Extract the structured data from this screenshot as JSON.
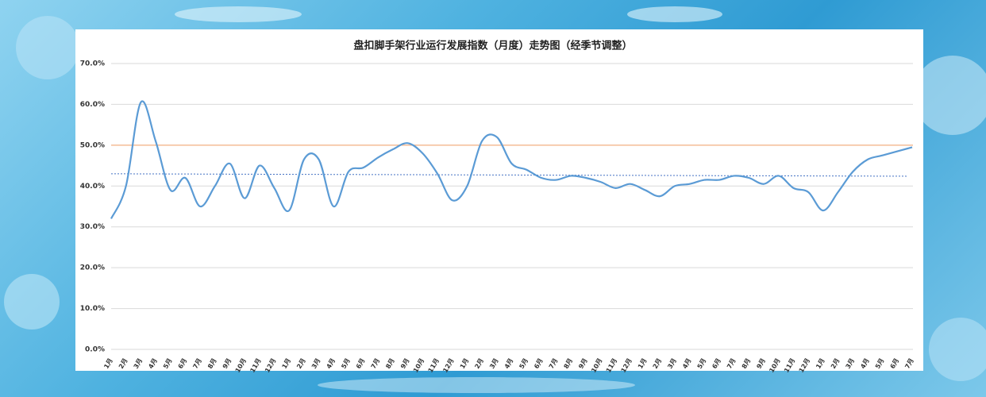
{
  "chart_data": {
    "type": "line",
    "title": "盘扣脚手架行业运行发展指数（月度）走势图（经季节调整）",
    "categories": [
      "1月",
      "2月",
      "3月",
      "4月",
      "5月",
      "6月",
      "7月",
      "8月",
      "9月",
      "10月",
      "11月",
      "12月",
      "1月",
      "2月",
      "3月",
      "4月",
      "5月",
      "6月",
      "7月",
      "8月",
      "9月",
      "10月",
      "11月",
      "12月",
      "1月",
      "2月",
      "3月",
      "4月",
      "5月",
      "6月",
      "7月",
      "8月",
      "9月",
      "10月",
      "11月",
      "12月",
      "1月",
      "2月",
      "3月",
      "4月",
      "5月",
      "6月",
      "7月",
      "8月",
      "9月",
      "10月",
      "11月",
      "12月",
      "1月",
      "2月",
      "3月",
      "4月",
      "5月",
      "6月",
      "7月"
    ],
    "series": [
      {
        "color": "#5b9bd5",
        "values": [
          32,
          40,
          60.5,
          51,
          39,
          42,
          35,
          40,
          45.5,
          37,
          45,
          39.5,
          34,
          46.5,
          46.5,
          35,
          43.5,
          44.5,
          47,
          49,
          50.5,
          48,
          43,
          36.5,
          40,
          51,
          52,
          45.5,
          44,
          42,
          41.5,
          42.5,
          42,
          41,
          39.5,
          40.5,
          39,
          37.5,
          40,
          40.5,
          41.5,
          41.5,
          42.5,
          42,
          40.5,
          42.5,
          39.5,
          38.5,
          34,
          38.5,
          43.5,
          46.5,
          47.5,
          48.5,
          49.5
        ]
      }
    ],
    "reference_line": {
      "value": 50,
      "color": "#f4b183"
    },
    "trendline": {
      "values": [
        43,
        42.4
      ],
      "color": "#4472c4"
    },
    "ylim": [
      0,
      70
    ],
    "yticks": [
      {
        "value": 0,
        "label": "0.0%"
      },
      {
        "value": 10,
        "label": "10.0%"
      },
      {
        "value": 20,
        "label": "20.0%"
      },
      {
        "value": 30,
        "label": "30.0%"
      },
      {
        "value": 40,
        "label": "40.0%"
      },
      {
        "value": 50,
        "label": "50.0%"
      },
      {
        "value": 60,
        "label": "60.0%"
      },
      {
        "value": 70,
        "label": "70.0%"
      }
    ],
    "grid": true
  }
}
